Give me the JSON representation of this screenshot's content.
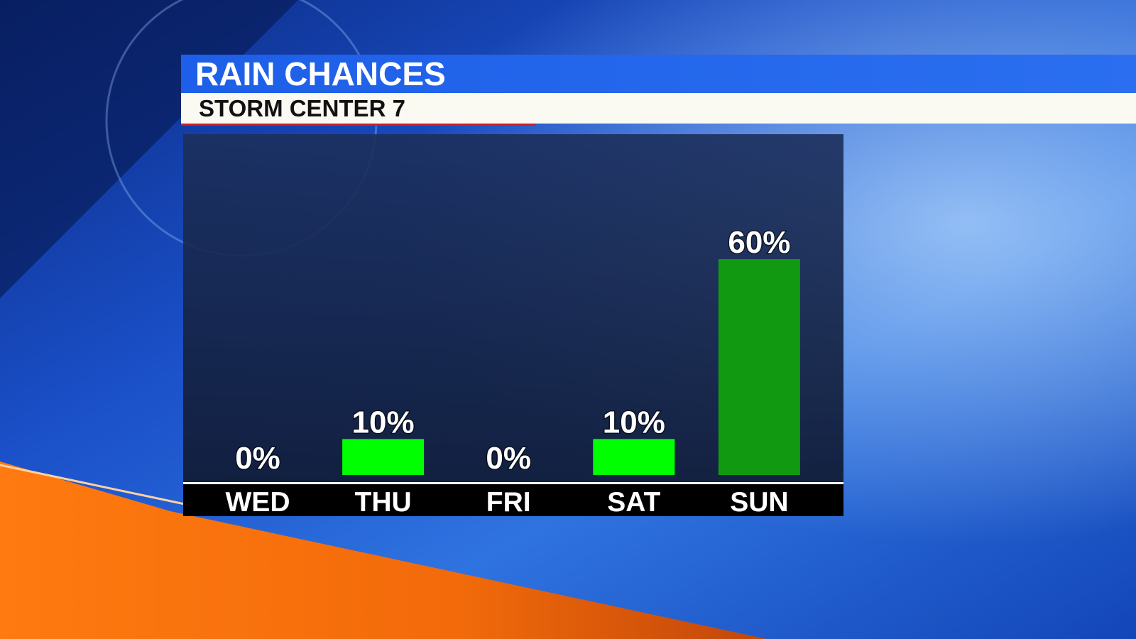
{
  "chart_data": {
    "type": "bar",
    "title": "RAIN CHANCES",
    "subtitle": "STORM CENTER 7",
    "categories": [
      "WED",
      "THU",
      "FRI",
      "SAT",
      "SUN"
    ],
    "values": [
      0,
      10,
      0,
      10,
      60
    ],
    "value_labels": [
      "0%",
      "10%",
      "0%",
      "10%",
      "60%"
    ],
    "colors": [
      "#00ff00",
      "#00ff00",
      "#00ff00",
      "#00ff00",
      "#129912"
    ]
  }
}
